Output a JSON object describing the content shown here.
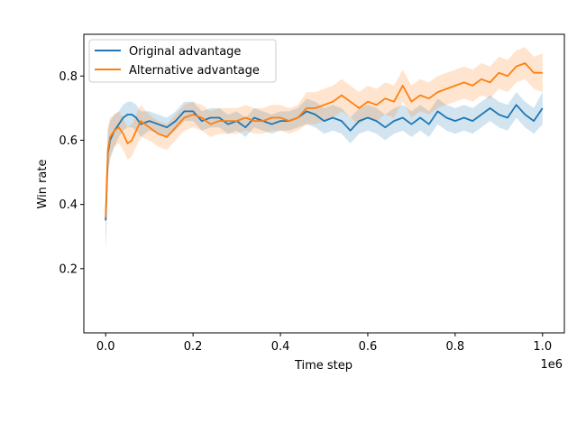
{
  "chart_data": {
    "type": "line",
    "title": "",
    "xlabel": "Time step",
    "ylabel": "Win rate",
    "x_offset_label": "1e6",
    "xlim": [
      -0.05,
      1.05
    ],
    "ylim": [
      0.0,
      0.93
    ],
    "x_unit_scale": 1000000,
    "x_ticks": [
      0.0,
      0.2,
      0.4,
      0.6,
      0.8,
      1.0
    ],
    "x_tick_labels": [
      "0.0",
      "0.2",
      "0.4",
      "0.6",
      "0.8",
      "1.0"
    ],
    "y_ticks": [
      0.2,
      0.4,
      0.6,
      0.8
    ],
    "y_tick_labels": [
      "0.2",
      "0.4",
      "0.6",
      "0.8"
    ],
    "grid": false,
    "legend_position": "upper-left",
    "series": [
      {
        "name": "Original advantage",
        "color": "#1f77b4",
        "x": [
          0,
          5000,
          10000,
          20000,
          30000,
          40000,
          50000,
          60000,
          70000,
          80000,
          100000,
          120000,
          140000,
          160000,
          180000,
          200000,
          220000,
          240000,
          260000,
          280000,
          300000,
          320000,
          340000,
          360000,
          380000,
          400000,
          420000,
          440000,
          460000,
          480000,
          500000,
          520000,
          540000,
          560000,
          580000,
          600000,
          620000,
          640000,
          660000,
          680000,
          700000,
          720000,
          740000,
          760000,
          780000,
          800000,
          820000,
          840000,
          860000,
          880000,
          900000,
          920000,
          940000,
          960000,
          980000,
          1000000
        ],
        "y": [
          0.35,
          0.56,
          0.6,
          0.63,
          0.65,
          0.67,
          0.68,
          0.68,
          0.67,
          0.65,
          0.66,
          0.65,
          0.64,
          0.66,
          0.69,
          0.69,
          0.66,
          0.67,
          0.67,
          0.65,
          0.66,
          0.64,
          0.67,
          0.66,
          0.65,
          0.66,
          0.66,
          0.67,
          0.69,
          0.68,
          0.66,
          0.67,
          0.66,
          0.63,
          0.66,
          0.67,
          0.66,
          0.64,
          0.66,
          0.67,
          0.65,
          0.67,
          0.65,
          0.69,
          0.67,
          0.66,
          0.67,
          0.66,
          0.68,
          0.7,
          0.68,
          0.67,
          0.71,
          0.68,
          0.66,
          0.7
        ],
        "band": [
          0.1,
          0.07,
          0.06,
          0.05,
          0.04,
          0.04,
          0.04,
          0.04,
          0.04,
          0.04,
          0.03,
          0.03,
          0.03,
          0.03,
          0.03,
          0.03,
          0.03,
          0.03,
          0.03,
          0.03,
          0.03,
          0.03,
          0.03,
          0.03,
          0.03,
          0.03,
          0.03,
          0.03,
          0.04,
          0.04,
          0.04,
          0.04,
          0.04,
          0.04,
          0.04,
          0.04,
          0.04,
          0.04,
          0.04,
          0.04,
          0.04,
          0.04,
          0.04,
          0.04,
          0.04,
          0.04,
          0.04,
          0.04,
          0.04,
          0.04,
          0.04,
          0.04,
          0.04,
          0.04,
          0.04,
          0.05
        ]
      },
      {
        "name": "Alternative advantage",
        "color": "#ff7f0e",
        "x": [
          0,
          5000,
          10000,
          20000,
          30000,
          40000,
          50000,
          60000,
          70000,
          80000,
          100000,
          120000,
          140000,
          160000,
          180000,
          200000,
          220000,
          240000,
          260000,
          280000,
          300000,
          320000,
          340000,
          360000,
          380000,
          400000,
          420000,
          440000,
          460000,
          480000,
          500000,
          520000,
          540000,
          560000,
          580000,
          600000,
          620000,
          640000,
          660000,
          680000,
          700000,
          720000,
          740000,
          760000,
          780000,
          800000,
          820000,
          840000,
          860000,
          880000,
          900000,
          920000,
          940000,
          960000,
          980000,
          1000000
        ],
        "y": [
          0.36,
          0.57,
          0.61,
          0.63,
          0.64,
          0.62,
          0.59,
          0.6,
          0.63,
          0.66,
          0.64,
          0.62,
          0.61,
          0.64,
          0.67,
          0.68,
          0.67,
          0.65,
          0.66,
          0.66,
          0.66,
          0.67,
          0.66,
          0.66,
          0.67,
          0.67,
          0.66,
          0.67,
          0.7,
          0.7,
          0.71,
          0.72,
          0.74,
          0.72,
          0.7,
          0.72,
          0.71,
          0.73,
          0.72,
          0.77,
          0.72,
          0.74,
          0.73,
          0.75,
          0.76,
          0.77,
          0.78,
          0.77,
          0.79,
          0.78,
          0.81,
          0.8,
          0.83,
          0.84,
          0.81,
          0.81
        ],
        "band": [
          0.1,
          0.07,
          0.06,
          0.05,
          0.05,
          0.05,
          0.05,
          0.05,
          0.05,
          0.05,
          0.04,
          0.04,
          0.04,
          0.04,
          0.04,
          0.04,
          0.04,
          0.04,
          0.04,
          0.04,
          0.04,
          0.04,
          0.04,
          0.04,
          0.04,
          0.04,
          0.04,
          0.04,
          0.05,
          0.05,
          0.05,
          0.05,
          0.05,
          0.05,
          0.05,
          0.05,
          0.05,
          0.05,
          0.05,
          0.05,
          0.05,
          0.05,
          0.05,
          0.05,
          0.05,
          0.05,
          0.05,
          0.05,
          0.05,
          0.05,
          0.05,
          0.05,
          0.05,
          0.05,
          0.05,
          0.06
        ]
      }
    ]
  }
}
